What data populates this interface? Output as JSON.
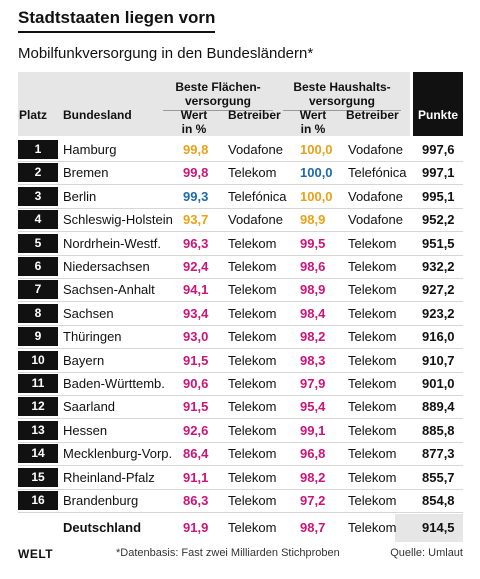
{
  "title": "Stadtstaaten liegen vorn",
  "subtitle": "Mobilfunkversorgung in den Bundesländern*",
  "headers": {
    "platz": "Platz",
    "bundesland": "Bundesland",
    "group1": "Beste Flächen-",
    "group1_line2": "versorgung",
    "group2": "Beste Haushalts-",
    "group2_line2": "versorgung",
    "wert": "Wert",
    "wert_unit": "in %",
    "betreiber": "Betreiber",
    "punkte": "Punkte"
  },
  "colors": {
    "vodafone": "#e8a21a",
    "telekom": "#c8157a",
    "telefonica": "#1e6aa8"
  },
  "rows": [
    {
      "rank": "1",
      "state": "Hamburg",
      "v1": "99,8",
      "p1": "Vodafone",
      "v2": "100,0",
      "p2": "Vodafone",
      "points": "997,6"
    },
    {
      "rank": "2",
      "state": "Bremen",
      "v1": "99,8",
      "p1": "Telekom",
      "v2": "100,0",
      "p2": "Telefónica",
      "points": "997,1"
    },
    {
      "rank": "3",
      "state": "Berlin",
      "v1": "99,3",
      "p1": "Telefónica",
      "v2": "100,0",
      "p2": "Vodafone",
      "points": "995,1"
    },
    {
      "rank": "4",
      "state": "Schleswig-Holstein",
      "v1": "93,7",
      "p1": "Vodafone",
      "v2": "98,9",
      "p2": "Vodafone",
      "points": "952,2"
    },
    {
      "rank": "5",
      "state": "Nordrhein-Westf.",
      "v1": "96,3",
      "p1": "Telekom",
      "v2": "99,5",
      "p2": "Telekom",
      "points": "951,5"
    },
    {
      "rank": "6",
      "state": "Niedersachsen",
      "v1": "92,4",
      "p1": "Telekom",
      "v2": "98,6",
      "p2": "Telekom",
      "points": "932,2"
    },
    {
      "rank": "7",
      "state": "Sachsen-Anhalt",
      "v1": "94,1",
      "p1": "Telekom",
      "v2": "98,9",
      "p2": "Telekom",
      "points": "927,2"
    },
    {
      "rank": "8",
      "state": "Sachsen",
      "v1": "93,4",
      "p1": "Telekom",
      "v2": "98,4",
      "p2": "Telekom",
      "points": "923,2"
    },
    {
      "rank": "9",
      "state": "Thüringen",
      "v1": "93,0",
      "p1": "Telekom",
      "v2": "98,2",
      "p2": "Telekom",
      "points": "916,0"
    },
    {
      "rank": "10",
      "state": "Bayern",
      "v1": "91,5",
      "p1": "Telekom",
      "v2": "98,3",
      "p2": "Telekom",
      "points": "910,7"
    },
    {
      "rank": "11",
      "state": "Baden-Württemb.",
      "v1": "90,6",
      "p1": "Telekom",
      "v2": "97,9",
      "p2": "Telekom",
      "points": "901,0"
    },
    {
      "rank": "12",
      "state": "Saarland",
      "v1": "91,5",
      "p1": "Telekom",
      "v2": "95,4",
      "p2": "Telekom",
      "points": "889,4"
    },
    {
      "rank": "13",
      "state": "Hessen",
      "v1": "92,6",
      "p1": "Telekom",
      "v2": "99,1",
      "p2": "Telekom",
      "points": "885,8"
    },
    {
      "rank": "14",
      "state": "Mecklenburg-Vorp.",
      "v1": "86,4",
      "p1": "Telekom",
      "v2": "96,8",
      "p2": "Telekom",
      "points": "877,3"
    },
    {
      "rank": "15",
      "state": "Rheinland-Pfalz",
      "v1": "91,1",
      "p1": "Telekom",
      "v2": "98,2",
      "p2": "Telekom",
      "points": "855,7"
    },
    {
      "rank": "16",
      "state": "Brandenburg",
      "v1": "86,3",
      "p1": "Telekom",
      "v2": "97,2",
      "p2": "Telekom",
      "points": "854,8"
    }
  ],
  "total": {
    "state": "Deutschland",
    "v1": "91,9",
    "p1": "Telekom",
    "v2": "98,7",
    "p2": "Telekom",
    "points": "914,5"
  },
  "footer": {
    "logo": "WELT",
    "note": "*Datenbasis: Fast zwei Milliarden Stichproben",
    "source": "Quelle: Umlaut"
  }
}
